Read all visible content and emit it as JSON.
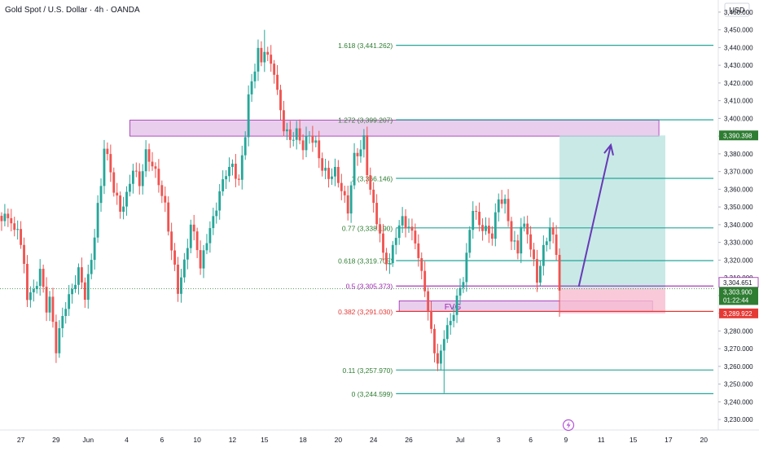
{
  "header": {
    "symbol_label": "Gold Spot / U.S. Dollar · 4h · OANDA"
  },
  "currency_label": "USD",
  "flash_icon": "lightning-icon",
  "colors": {
    "up": "#26a69a",
    "down": "#ef5350",
    "fib_line": "#26a69a",
    "zone_fill": "#e1bee7",
    "zone_border": "#9c27b0",
    "arrow": "#673ab7",
    "target_fill": "#b2dfdb",
    "stop_fill": "#f8bbd0",
    "price_badge": "#2e7d32",
    "stop_badge": "#e53935"
  },
  "chart_data": {
    "type": "candlestick",
    "title": "Gold Spot / U.S. Dollar · 4h · OANDA",
    "ylim": [
      3225,
      3465
    ],
    "y_ticks": [
      3230,
      3240,
      3250,
      3260,
      3270,
      3280,
      3290,
      3300,
      3310,
      3320,
      3330,
      3340,
      3350,
      3360,
      3370,
      3380,
      3390,
      3400,
      3410,
      3420,
      3430,
      3440,
      3450,
      3460
    ],
    "y_tick_labels": [
      "3,230.000",
      "3,240.000",
      "3,250.000",
      "3,260.000",
      "3,270.000",
      "3,280.000",
      "3,290.000",
      "3,300.000",
      "3,310.000",
      "3,320.000",
      "3,330.000",
      "3,340.000",
      "3,350.000",
      "3,360.000",
      "3,370.000",
      "3,380.000",
      "3,390.000",
      "3,400.000",
      "3,410.000",
      "3,420.000",
      "3,430.000",
      "3,440.000",
      "3,450.000",
      "3,460.000"
    ],
    "x_range": [
      0,
      222
    ],
    "x_ticks": [
      {
        "label": "27",
        "bar": 6
      },
      {
        "label": "29",
        "bar": 17
      },
      {
        "label": "Jun",
        "bar": 27
      },
      {
        "label": "4",
        "bar": 39
      },
      {
        "label": "6",
        "bar": 50
      },
      {
        "label": "10",
        "bar": 61
      },
      {
        "label": "12",
        "bar": 72
      },
      {
        "label": "15",
        "bar": 82
      },
      {
        "label": "18",
        "bar": 94
      },
      {
        "label": "20",
        "bar": 105
      },
      {
        "label": "24",
        "bar": 116
      },
      {
        "label": "26",
        "bar": 127
      },
      {
        "label": "Jul",
        "bar": 143
      },
      {
        "label": "3",
        "bar": 155
      },
      {
        "label": "6",
        "bar": 165
      },
      {
        "label": "9",
        "bar": 176
      },
      {
        "label": "11",
        "bar": 187
      },
      {
        "label": "15",
        "bar": 197
      },
      {
        "label": "17",
        "bar": 208
      },
      {
        "label": "20",
        "bar": 219
      }
    ],
    "anchors": [
      [
        0,
        3342
      ],
      [
        2,
        3346
      ],
      [
        4,
        3335
      ],
      [
        5,
        3340
      ],
      [
        7,
        3316
      ],
      [
        8,
        3300
      ],
      [
        10,
        3302
      ],
      [
        12,
        3314
      ],
      [
        14,
        3293
      ],
      [
        15,
        3298
      ],
      [
        17,
        3270
      ],
      [
        18,
        3280
      ],
      [
        20,
        3295
      ],
      [
        22,
        3303
      ],
      [
        24,
        3314
      ],
      [
        26,
        3300
      ],
      [
        28,
        3320
      ],
      [
        30,
        3350
      ],
      [
        31,
        3362
      ],
      [
        32,
        3385
      ],
      [
        34,
        3370
      ],
      [
        35,
        3360
      ],
      [
        37,
        3348
      ],
      [
        39,
        3356
      ],
      [
        41,
        3372
      ],
      [
        43,
        3363
      ],
      [
        45,
        3380
      ],
      [
        47,
        3374
      ],
      [
        49,
        3364
      ],
      [
        51,
        3350
      ],
      [
        53,
        3326
      ],
      [
        54,
        3315
      ],
      [
        55,
        3303
      ],
      [
        57,
        3318
      ],
      [
        59,
        3340
      ],
      [
        61,
        3328
      ],
      [
        62,
        3315
      ],
      [
        64,
        3332
      ],
      [
        66,
        3343
      ],
      [
        68,
        3358
      ],
      [
        70,
        3370
      ],
      [
        72,
        3373
      ],
      [
        74,
        3364
      ],
      [
        76,
        3392
      ],
      [
        77,
        3412
      ],
      [
        78,
        3420
      ],
      [
        80,
        3438
      ],
      [
        81,
        3431
      ],
      [
        82,
        3440
      ],
      [
        83,
        3434
      ],
      [
        85,
        3427
      ],
      [
        86,
        3414
      ],
      [
        88,
        3395
      ],
      [
        90,
        3388
      ],
      [
        92,
        3392
      ],
      [
        94,
        3384
      ],
      [
        96,
        3391
      ],
      [
        98,
        3385
      ],
      [
        100,
        3372
      ],
      [
        102,
        3367
      ],
      [
        104,
        3370
      ],
      [
        106,
        3360
      ],
      [
        108,
        3348
      ],
      [
        110,
        3378
      ],
      [
        112,
        3383
      ],
      [
        113,
        3388
      ],
      [
        114,
        3370
      ],
      [
        116,
        3350
      ],
      [
        118,
        3335
      ],
      [
        119,
        3322
      ],
      [
        121,
        3318
      ],
      [
        123,
        3335
      ],
      [
        125,
        3343
      ],
      [
        127,
        3338
      ],
      [
        129,
        3332
      ],
      [
        130,
        3320
      ],
      [
        132,
        3305
      ],
      [
        133,
        3290
      ],
      [
        135,
        3270
      ],
      [
        136,
        3260
      ],
      [
        137,
        3268
      ],
      [
        138,
        3278
      ],
      [
        140,
        3285
      ],
      [
        142,
        3298
      ],
      [
        144,
        3310
      ],
      [
        145,
        3322
      ],
      [
        146,
        3337
      ],
      [
        147,
        3350
      ],
      [
        149,
        3340
      ],
      [
        151,
        3337
      ],
      [
        153,
        3334
      ],
      [
        155,
        3355
      ],
      [
        157,
        3352
      ],
      [
        158,
        3343
      ],
      [
        159,
        3332
      ],
      [
        161,
        3325
      ],
      [
        162,
        3340
      ],
      [
        164,
        3336
      ],
      [
        166,
        3318
      ],
      [
        167,
        3309
      ],
      [
        169,
        3326
      ],
      [
        171,
        3339
      ],
      [
        173,
        3325
      ],
      [
        174,
        3303
      ]
    ],
    "events": {
      "bar_spike_high": 82,
      "spike_high": 3450,
      "bar_spike_low": 138,
      "spike_low": 3245,
      "bar_wick_low": 174,
      "wick_low": 3288
    },
    "fib_levels": [
      {
        "label": "1.618 (3,441.262)",
        "value": 3441.262,
        "bar_start": 123,
        "bar_end": 222
      },
      {
        "label": "1.272 (3,399.207)",
        "value": 3399.207,
        "bar_start": 123,
        "bar_end": 222
      },
      {
        "label": "1 (3,366.146)",
        "value": 3366.146,
        "bar_start": 123,
        "bar_end": 222
      },
      {
        "label": "0.77 (3,338.190)",
        "value": 3338.19,
        "bar_start": 123,
        "bar_end": 222
      },
      {
        "label": "0.618 (3,319.705)",
        "value": 3319.705,
        "bar_start": 123,
        "bar_end": 222
      },
      {
        "label": "0.5 (3,305.373)",
        "value": 3305.373,
        "bar_start": 123,
        "bar_end": 222
      },
      {
        "label": "0.382 (3,291.030)",
        "value": 3291.03,
        "bar_start": 123,
        "bar_end": 222
      },
      {
        "label": "0.11 (3,257.970)",
        "value": 3257.97,
        "bar_start": 123,
        "bar_end": 222
      },
      {
        "label": "0 (3,244.599)",
        "value": 3244.599,
        "bar_start": 123,
        "bar_end": 222
      }
    ],
    "zones": [
      {
        "name": "resistance",
        "bar_start": 40,
        "bar_end": 205,
        "y_low": 3390,
        "y_high": 3399,
        "label": ""
      },
      {
        "name": "fvg",
        "bar_start": 124,
        "bar_end": 203,
        "y_low": 3291,
        "y_high": 3297,
        "label": "FVG"
      }
    ],
    "position": {
      "bar_start": 174,
      "bar_end": 207,
      "entry": 3303.9,
      "target": 3390.398,
      "stop": 3289.922
    },
    "arrow": {
      "from_bar": 180,
      "from_y": 3305,
      "to_bar": 190,
      "to_y": 3385
    },
    "price_axis_badges": [
      {
        "name": "target",
        "value": 3390.398,
        "label": "3,390.398",
        "style": "target"
      },
      {
        "name": "fifty",
        "value": 3304.651,
        "label": "3,304.651",
        "style": "fifty"
      },
      {
        "name": "current-price",
        "value": 3303.9,
        "label": "3,303.900",
        "countdown": "01:22:44",
        "style": "current"
      },
      {
        "name": "stop",
        "value": 3289.922,
        "label": "3,289.922",
        "style": "stop"
      }
    ]
  }
}
